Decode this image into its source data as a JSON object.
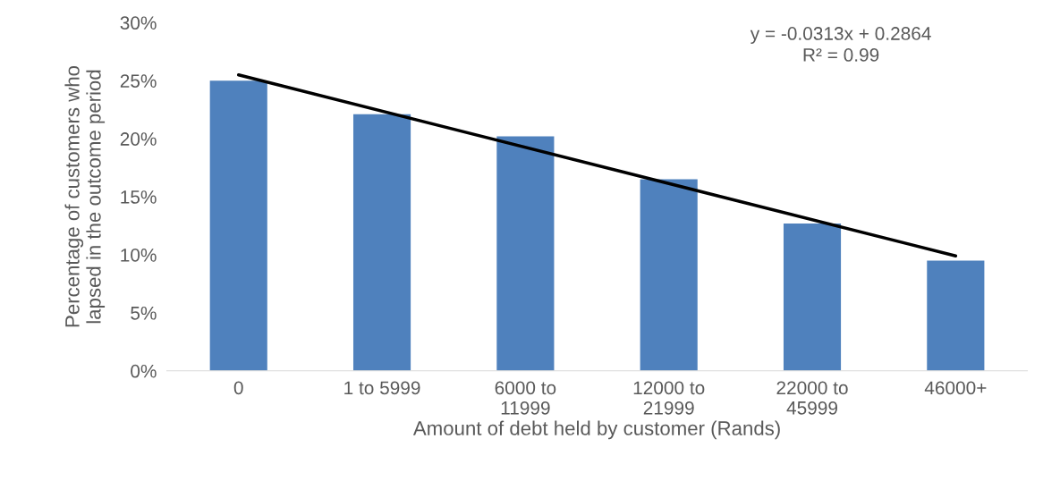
{
  "chart_data": {
    "type": "bar",
    "xlabel": "Amount of debt held by customer (Rands)",
    "ylabel": "Percentage of customers who\nlapsed in the outcome period",
    "categories": [
      "0",
      "1 to 5999",
      "6000 to\n11999",
      "12000 to\n21999",
      "22000 to\n45999",
      "46000+"
    ],
    "series": [
      {
        "color": "#4f81bd",
        "values": [
          25.0,
          22.1,
          20.2,
          16.5,
          12.7,
          9.5
        ]
      },
      {
        "type": "line",
        "color": "#000000",
        "x": [
          "0",
          "46000+"
        ],
        "values": [
          25.5,
          9.9
        ]
      }
    ],
    "ylim": [
      0,
      30
    ],
    "yticks": [
      {
        "value": 0,
        "label": "0%"
      },
      {
        "value": 5,
        "label": "5%"
      },
      {
        "value": 10,
        "label": "10%"
      },
      {
        "value": 15,
        "label": "15%"
      },
      {
        "value": 20,
        "label": "20%"
      },
      {
        "value": 25,
        "label": "25%"
      },
      {
        "value": 30,
        "label": "30%"
      }
    ],
    "annotations": [
      "y = -0.0313x + 0.2864\nR² = 0.99"
    ],
    "grid": false,
    "legend": false
  }
}
